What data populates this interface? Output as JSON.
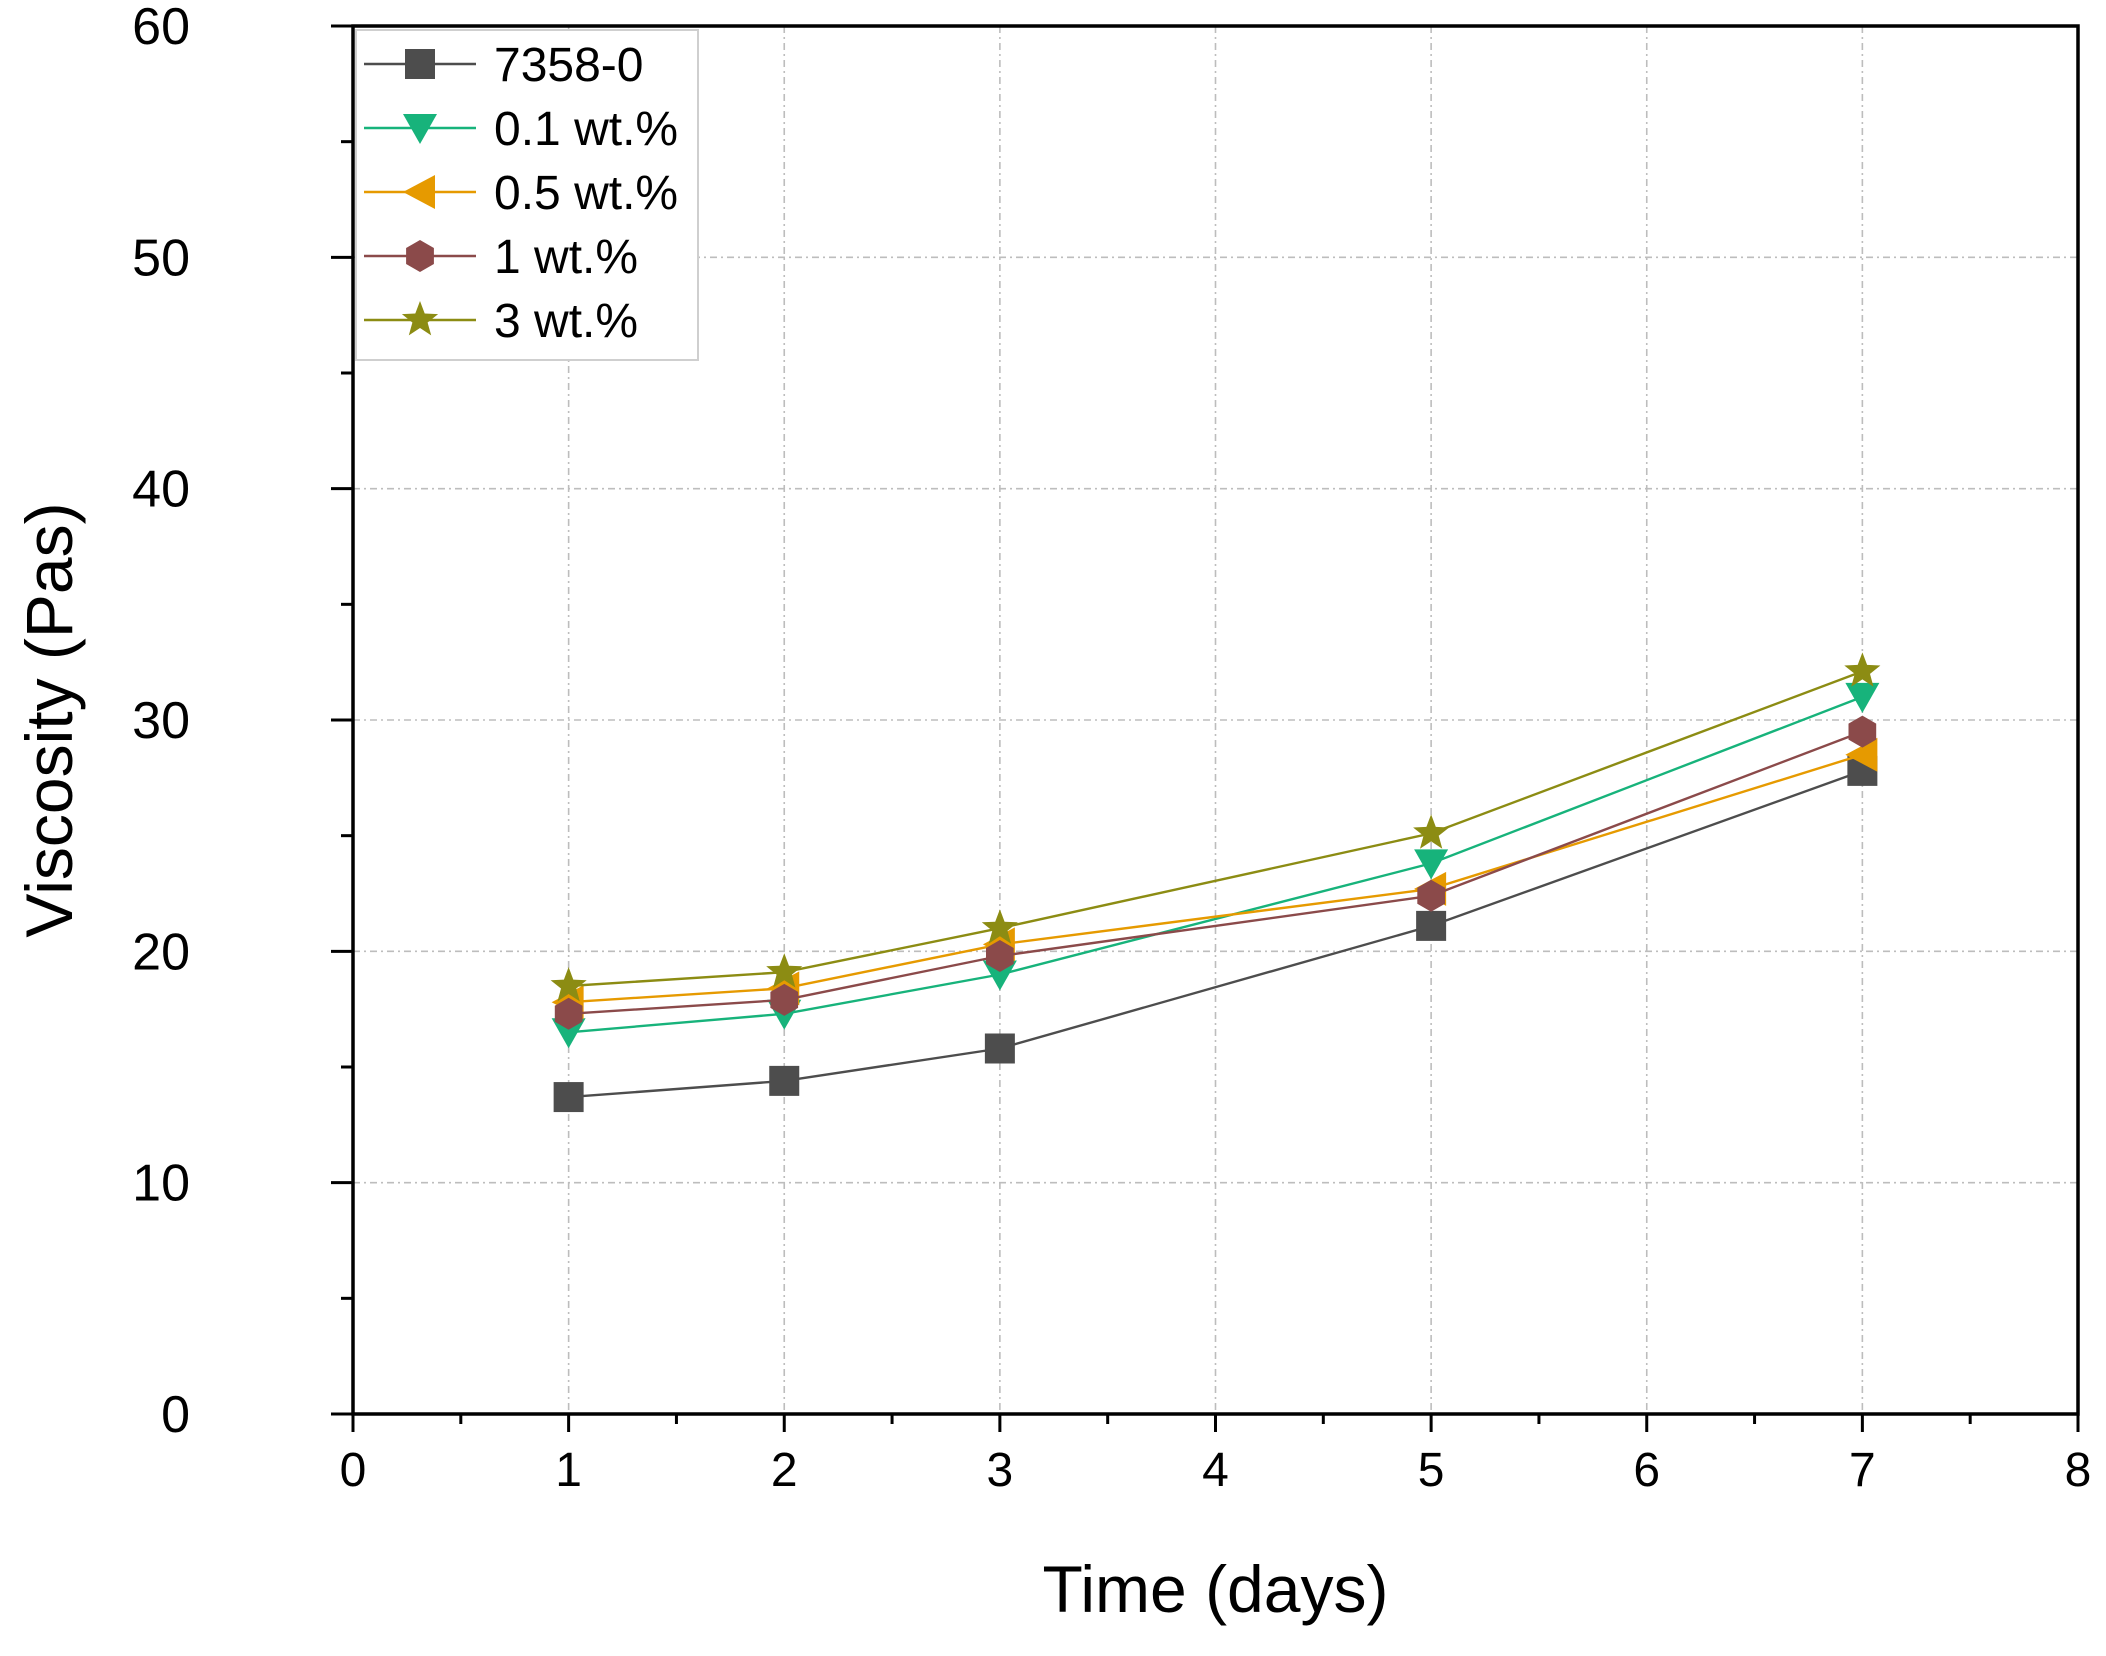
{
  "chart_data": {
    "type": "line",
    "title": "",
    "xlabel": "Time (days)",
    "ylabel": "Viscosity (Pas)",
    "xlim": [
      0,
      8
    ],
    "ylim": [
      0,
      60
    ],
    "xticks": [
      "0",
      "1",
      "2",
      "3",
      "4",
      "5",
      "6",
      "7",
      "8"
    ],
    "yticks": [
      "0",
      "10",
      "20",
      "30",
      "40",
      "50",
      "60"
    ],
    "grid": true,
    "legend_position": "top-left",
    "x": [
      1,
      2,
      3,
      5,
      7
    ],
    "series": [
      {
        "name": "7358-0",
        "marker": "square",
        "color": "#4d4d4d",
        "values": [
          13.7,
          14.4,
          15.8,
          21.1,
          27.8
        ]
      },
      {
        "name": "0.1 wt.%",
        "marker": "triangle-down",
        "color": "#17b37b",
        "values": [
          16.5,
          17.3,
          19.0,
          23.8,
          31.0
        ]
      },
      {
        "name": "0.5 wt.%",
        "marker": "triangle-left",
        "color": "#e69a00",
        "values": [
          17.8,
          18.4,
          20.3,
          22.7,
          28.5
        ]
      },
      {
        "name": "1 wt.%",
        "marker": "hexagon",
        "color": "#8b4a4a",
        "values": [
          17.3,
          17.9,
          19.8,
          22.4,
          29.5
        ]
      },
      {
        "name": "3 wt.%",
        "marker": "star",
        "color": "#8c8c13",
        "values": [
          18.5,
          19.1,
          21.0,
          25.1,
          32.1
        ]
      }
    ]
  }
}
